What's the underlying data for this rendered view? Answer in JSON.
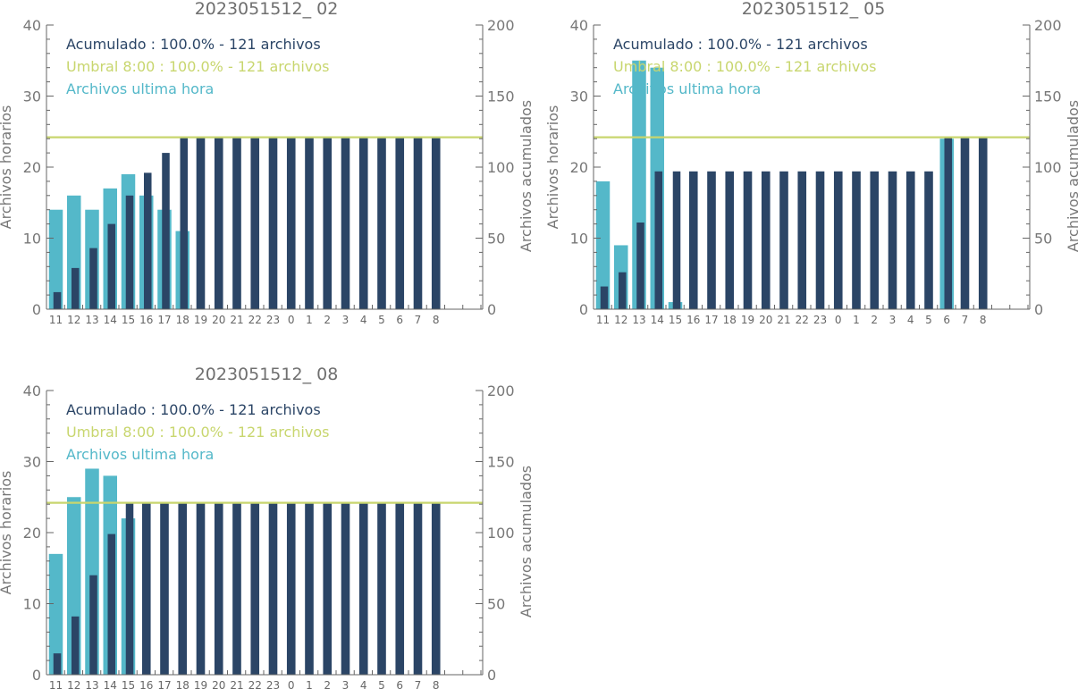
{
  "colors": {
    "hourly": "#54b8c9",
    "cumulative": "#2b4566",
    "threshold": "#c8d66e",
    "axis": "#666666",
    "text": "#6f6f6f"
  },
  "chart_data": [
    {
      "type": "bar",
      "title": "2023051512_ 02",
      "ylabel": "Archivos horarios",
      "y2label": "Archivos acumulados",
      "ylim": [
        0,
        40
      ],
      "y2lim": [
        0,
        200
      ],
      "yticks": [
        0,
        10,
        20,
        30,
        40
      ],
      "y2ticks": [
        0,
        50,
        100,
        150,
        200
      ],
      "categories": [
        "11",
        "12",
        "13",
        "14",
        "15",
        "16",
        "17",
        "18",
        "19",
        "20",
        "21",
        "22",
        "23",
        "0",
        "1",
        "2",
        "3",
        "4",
        "5",
        "6",
        "7",
        "8"
      ],
      "legend": [
        "Acumulado : 100.0% - 121 archivos",
        "Umbral 8:00 : 100.0% - 121 archivos",
        "Archivos ultima hora"
      ],
      "threshold": 121,
      "series": [
        {
          "name": "Archivos ultima hora",
          "axis": "left",
          "values": [
            14,
            16,
            14,
            17,
            19,
            16,
            14,
            11,
            0,
            0,
            0,
            0,
            0,
            0,
            0,
            0,
            0,
            0,
            0,
            0,
            0,
            0
          ]
        },
        {
          "name": "Acumulado",
          "axis": "right",
          "values": [
            12,
            29,
            43,
            60,
            80,
            96,
            110,
            121,
            121,
            121,
            121,
            121,
            121,
            121,
            121,
            121,
            121,
            121,
            121,
            121,
            121,
            121
          ]
        }
      ]
    },
    {
      "type": "bar",
      "title": "2023051512_ 05",
      "ylabel": "Archivos horarios",
      "y2label": "Archivos acumulados",
      "ylim": [
        0,
        40
      ],
      "y2lim": [
        0,
        200
      ],
      "yticks": [
        0,
        10,
        20,
        30,
        40
      ],
      "y2ticks": [
        0,
        50,
        100,
        150,
        200
      ],
      "categories": [
        "11",
        "12",
        "13",
        "14",
        "15",
        "16",
        "17",
        "18",
        "19",
        "20",
        "21",
        "22",
        "23",
        "0",
        "1",
        "2",
        "3",
        "4",
        "5",
        "6",
        "7",
        "8"
      ],
      "legend": [
        "Acumulado : 100.0% - 121 archivos",
        "Umbral 8:00 : 100.0% - 121 archivos",
        "Archivos ultima hora"
      ],
      "threshold": 121,
      "series": [
        {
          "name": "Archivos ultima hora",
          "axis": "left",
          "values": [
            18,
            9,
            35,
            34,
            1,
            0,
            0,
            0,
            0,
            0,
            0,
            0,
            0,
            0,
            0,
            0,
            0,
            0,
            0,
            24,
            0,
            0
          ]
        },
        {
          "name": "Acumulado",
          "axis": "right",
          "values": [
            16,
            26,
            61,
            97,
            97,
            97,
            97,
            97,
            97,
            97,
            97,
            97,
            97,
            97,
            97,
            97,
            97,
            97,
            97,
            121,
            121,
            121
          ]
        }
      ]
    },
    {
      "type": "bar",
      "title": "2023051512_ 08",
      "ylabel": "Archivos horarios",
      "y2label": "Archivos acumulados",
      "ylim": [
        0,
        40
      ],
      "y2lim": [
        0,
        200
      ],
      "yticks": [
        0,
        10,
        20,
        30,
        40
      ],
      "y2ticks": [
        0,
        50,
        100,
        150,
        200
      ],
      "categories": [
        "11",
        "12",
        "13",
        "14",
        "15",
        "16",
        "17",
        "18",
        "19",
        "20",
        "21",
        "22",
        "23",
        "0",
        "1",
        "2",
        "3",
        "4",
        "5",
        "6",
        "7",
        "8"
      ],
      "legend": [
        "Acumulado : 100.0% - 121 archivos",
        "Umbral 8:00 : 100.0% - 121 archivos",
        "Archivos ultima hora"
      ],
      "threshold": 121,
      "series": [
        {
          "name": "Archivos ultima hora",
          "axis": "left",
          "values": [
            17,
            25,
            29,
            28,
            22,
            0,
            0,
            0,
            0,
            0,
            0,
            0,
            0,
            0,
            0,
            0,
            0,
            0,
            0,
            0,
            0,
            0
          ]
        },
        {
          "name": "Acumulado",
          "axis": "right",
          "values": [
            15,
            41,
            70,
            99,
            121,
            121,
            121,
            121,
            121,
            121,
            121,
            121,
            121,
            121,
            121,
            121,
            121,
            121,
            121,
            121,
            121,
            121
          ]
        }
      ]
    }
  ]
}
